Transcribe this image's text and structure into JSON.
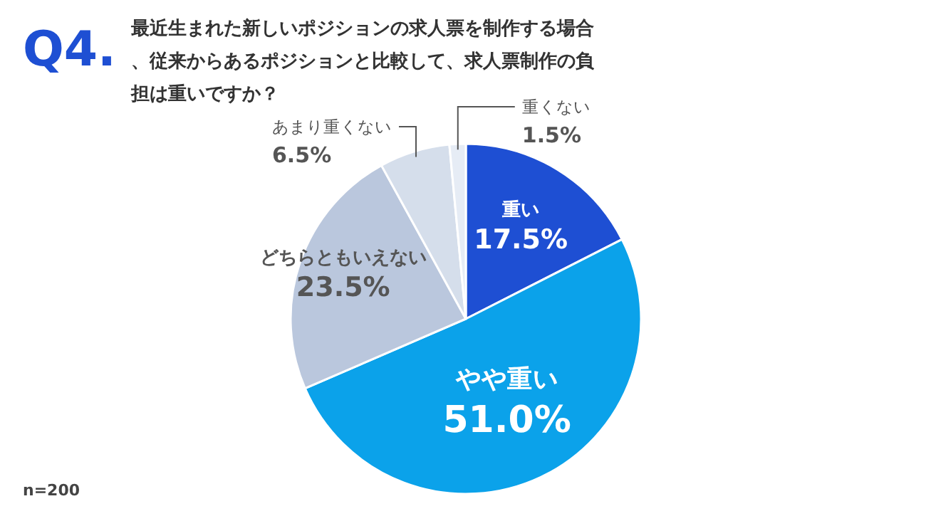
{
  "chart_data": {
    "type": "pie",
    "title": "Q4.",
    "subtitle": "最近生まれた新しいポジションの求人票を制作する場合、従来からあるポジションと比較して、求人票制作の負担は重いですか？",
    "categories": [
      "重い",
      "やや重い",
      "どちらともいえない",
      "あまり重くない",
      "重くない"
    ],
    "values": [
      17.5,
      51.0,
      23.5,
      6.5,
      1.5
    ],
    "value_labels": [
      "17.5%",
      "51.0%",
      "23.5%",
      "6.5%",
      "1.5%"
    ],
    "colors": [
      "#1e4fd3",
      "#0ba2ea",
      "#bac7dd",
      "#d5deeb",
      "#e6ecf5"
    ],
    "annotations": [
      "n=200"
    ]
  }
}
